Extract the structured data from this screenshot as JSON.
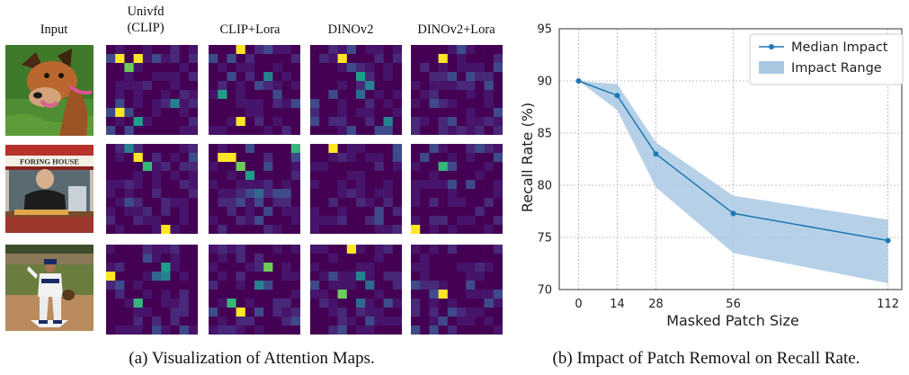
{
  "figure_a": {
    "caption": "(a) Visualization of Attention Maps.",
    "columns": [
      "Input",
      "Univfd\n(CLIP)",
      "CLIP+Lora",
      "DINOv2",
      "DINOv2+Lora"
    ],
    "rows": [
      {
        "input": "dog photo"
      },
      {
        "input": "food stand photo",
        "sign_text": "FORING HOUSE"
      },
      {
        "input": "baseball player photo"
      }
    ]
  },
  "chart_data": {
    "type": "line",
    "caption": "(b) Impact of Patch Removal on Recall Rate.",
    "xlabel": "Masked Patch Size",
    "ylabel": "Recall Rate (%)",
    "x": [
      0,
      14,
      28,
      56,
      112
    ],
    "xticks": [
      "0",
      "14",
      "28",
      "56",
      "112"
    ],
    "yticks": [
      "70",
      "75",
      "80",
      "85",
      "90",
      "95"
    ],
    "ylim": [
      70,
      95
    ],
    "grid": true,
    "legend_position": "top-right",
    "series": [
      {
        "name": "Median Impact",
        "values": [
          90.0,
          88.6,
          83.0,
          77.3,
          74.7
        ]
      },
      {
        "name": "Impact Range",
        "upper": [
          90.0,
          89.7,
          84.1,
          79.0,
          76.7
        ],
        "lower": [
          90.0,
          87.2,
          79.8,
          73.5,
          70.6
        ]
      }
    ],
    "colors": {
      "line": "#1f77b4",
      "band": "#a9c9e3"
    }
  }
}
